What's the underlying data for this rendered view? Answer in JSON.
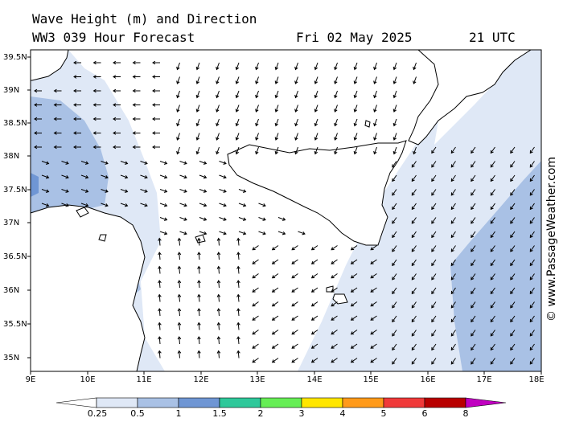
{
  "header": {
    "title": "Wave Height (m) and Direction",
    "model": "WW3 039 Hour Forecast",
    "date": "Fri 02 May 2025",
    "time": "21 UTC"
  },
  "credit": "© www.PassageWeather.com",
  "axes": {
    "lat_labels": [
      "39.5N",
      "39N",
      "38.5N",
      "38N",
      "37.5N",
      "37N",
      "36.5N",
      "36N",
      "35.5N",
      "35N"
    ],
    "lon_labels": [
      "9E",
      "10E",
      "11E",
      "12E",
      "13E",
      "14E",
      "15E",
      "16E",
      "17E",
      "18E"
    ]
  },
  "legend": {
    "colors": [
      "#dfe8f6",
      "#a9c1e5",
      "#6f96d4",
      "#2ec89a",
      "#66ee55",
      "#ffe600",
      "#ff9a1a",
      "#f03a3a",
      "#b80000",
      "#c000c0"
    ],
    "labels": [
      "0.25",
      "0.5",
      "1",
      "1.5",
      "2",
      "3",
      "4",
      "5",
      "6",
      "8"
    ]
  },
  "colors": {
    "land": "#ffffff",
    "light_sea": "#dfe8f6",
    "mid_sea": "#a9c1e5",
    "dark_sea": "#6f96d4"
  },
  "features": {
    "land": "land-mass-icon",
    "arrow": "wave-direction-arrow-icon"
  }
}
